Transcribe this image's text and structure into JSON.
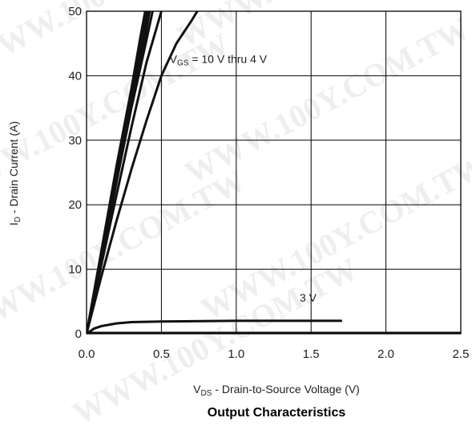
{
  "chart_data": {
    "type": "line",
    "title": "Output Characteristics",
    "xlabel": {
      "main": "V",
      "sub": "DS",
      "rest": " - Drain-to-Source Voltage (V)"
    },
    "ylabel": {
      "main": "I",
      "sub": "D",
      "rest": " - Drain Current (A)"
    },
    "xlim": [
      0,
      2.5
    ],
    "ylim": [
      0,
      50
    ],
    "xticks": [
      0.0,
      0.5,
      1.0,
      1.5,
      2.0,
      2.5
    ],
    "xtick_labels": [
      "0.0",
      "0.5",
      "1.0",
      "1.5",
      "2.0",
      "2.5"
    ],
    "yticks": [
      0,
      10,
      20,
      30,
      40,
      50
    ],
    "ytick_labels": [
      "0",
      "10",
      "20",
      "30",
      "40",
      "50"
    ],
    "grid": true,
    "annotations": [
      {
        "main": "V",
        "sub": "GS",
        "rest": " = 10 V thru 4 V",
        "x": 0.88,
        "y": 42
      },
      {
        "main": "3 V",
        "sub": "",
        "rest": "",
        "x": 1.48,
        "y": 5
      }
    ],
    "series": [
      {
        "x": [
          0,
          0.1,
          0.2,
          0.3,
          0.36,
          0.4
        ],
        "y": [
          0,
          13,
          26,
          38,
          46,
          51
        ]
      },
      {
        "x": [
          0,
          0.1,
          0.2,
          0.3,
          0.37,
          0.41
        ],
        "y": [
          0,
          12.7,
          25.5,
          37.8,
          46,
          51
        ]
      },
      {
        "x": [
          0,
          0.1,
          0.2,
          0.3,
          0.38,
          0.42
        ],
        "y": [
          0,
          12.4,
          25,
          37,
          46,
          51
        ]
      },
      {
        "x": [
          0,
          0.1,
          0.2,
          0.3,
          0.39,
          0.43
        ],
        "y": [
          0,
          12,
          24.5,
          36.5,
          46,
          51
        ]
      },
      {
        "x": [
          0,
          0.1,
          0.2,
          0.3,
          0.4,
          0.45
        ],
        "y": [
          0,
          11.5,
          23.5,
          35,
          45.5,
          51
        ]
      },
      {
        "x": [
          0,
          0.1,
          0.2,
          0.3,
          0.4,
          0.5
        ],
        "y": [
          0,
          10.8,
          21.5,
          32,
          42,
          50
        ]
      },
      {
        "x": [
          0,
          0.1,
          0.2,
          0.3,
          0.4,
          0.5,
          0.6,
          0.7,
          0.74
        ],
        "y": [
          0,
          9,
          17.5,
          25.5,
          33,
          40,
          45,
          48.5,
          50
        ]
      },
      {
        "x": [
          0,
          0.05,
          0.1,
          0.2,
          0.3,
          0.5,
          1.0,
          1.5,
          1.7
        ],
        "y": [
          0,
          0.8,
          1.2,
          1.6,
          1.8,
          1.9,
          2.0,
          2.0,
          2.0
        ]
      }
    ]
  },
  "watermark": "WWW.100Y.COM.TW"
}
